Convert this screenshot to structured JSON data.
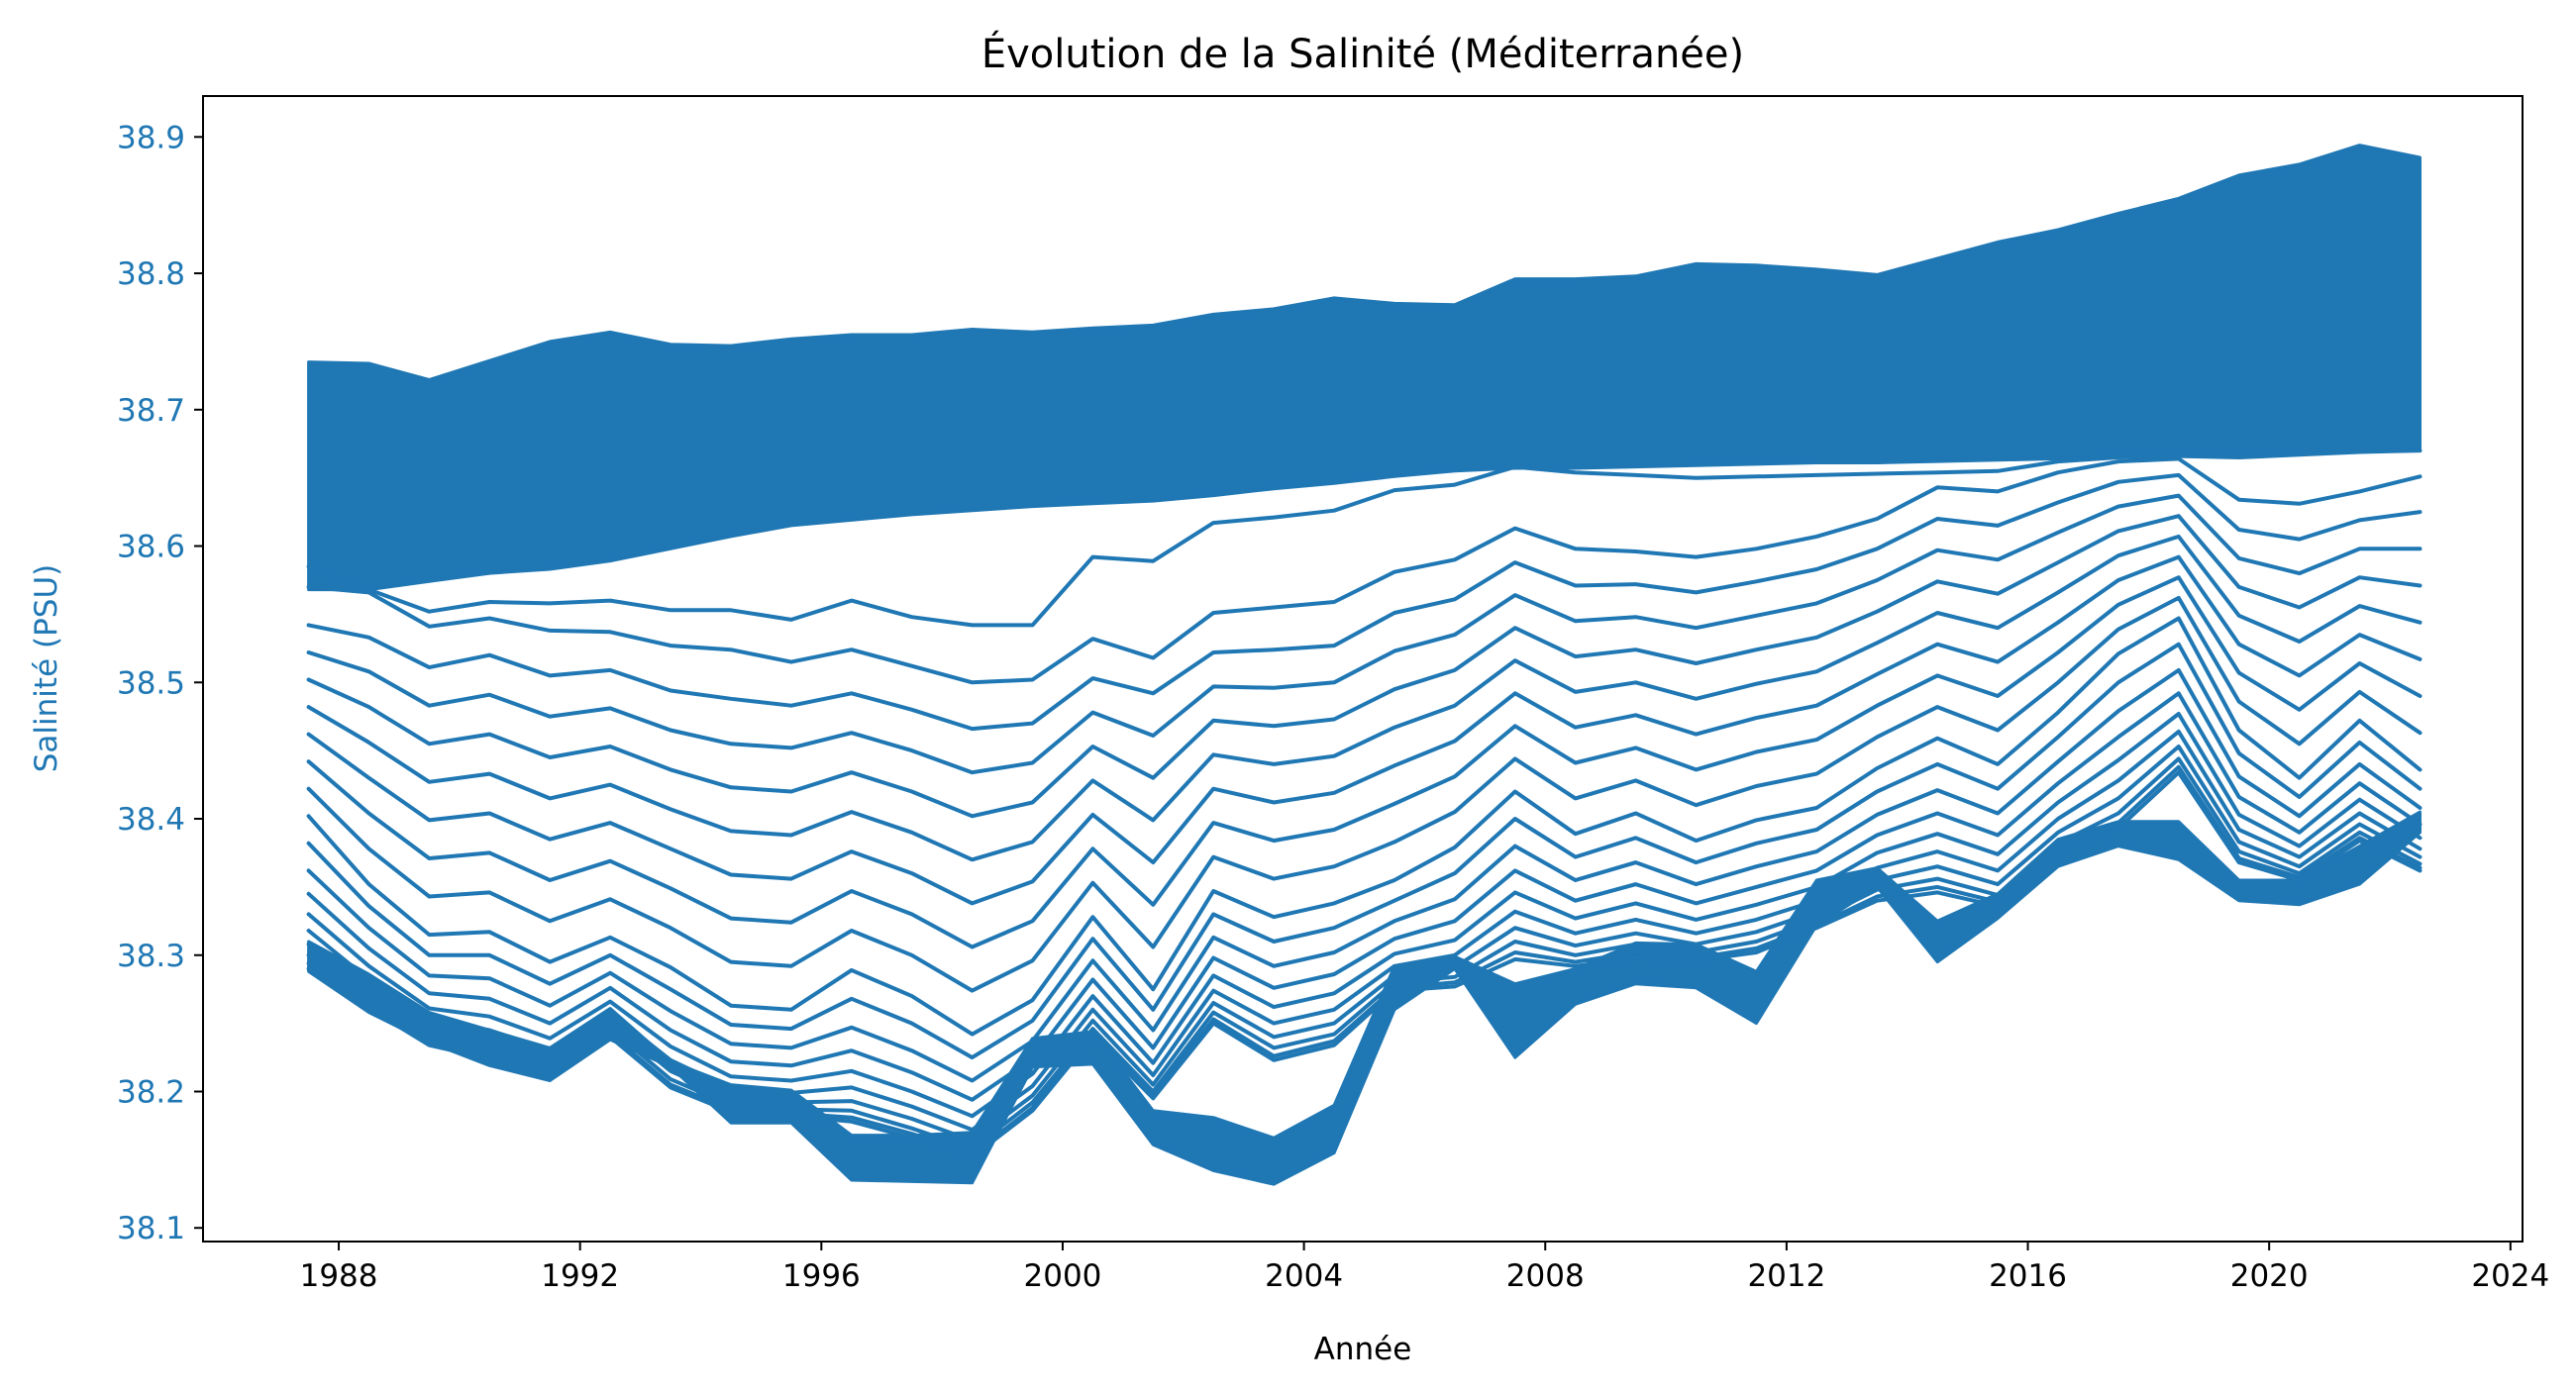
{
  "chart_data": {
    "type": "line",
    "title": "Évolution de la Salinité (Méditerranée)",
    "xlabel": "Année",
    "ylabel": "Salinité (PSU)",
    "x_ticks": [
      "1988",
      "1992",
      "1996",
      "2000",
      "2004",
      "2008",
      "2012",
      "2016",
      "2020",
      "2024"
    ],
    "y_ticks": [
      "38.1",
      "38.2",
      "38.3",
      "38.4",
      "38.5",
      "38.6",
      "38.7",
      "38.8",
      "38.9"
    ],
    "xlim": [
      1985.75,
      2024.2
    ],
    "ylim": [
      38.09,
      38.93
    ],
    "series_color": "#1f77b4",
    "ytick_color": "#1f77b4",
    "grid": false,
    "legend": "none",
    "x": [
      1987.5,
      1988.5,
      1989.5,
      1990.5,
      1991.5,
      1992.5,
      1993.5,
      1994.5,
      1995.5,
      1996.5,
      1997.5,
      1998.5,
      1999.5,
      2000.5,
      2001.5,
      2002.5,
      2003.5,
      2004.5,
      2005.5,
      2006.5,
      2007.5,
      2008.5,
      2009.5,
      2010.5,
      2011.5,
      2012.5,
      2013.5,
      2014.5,
      2015.5,
      2016.5,
      2017.5,
      2018.5,
      2019.5,
      2020.5,
      2021.5,
      2022.5
    ],
    "band_upper": [
      38.735,
      38.734,
      38.722,
      38.736,
      38.75,
      38.757,
      38.748,
      38.747,
      38.752,
      38.755,
      38.755,
      38.759,
      38.757,
      38.76,
      38.762,
      38.77,
      38.774,
      38.782,
      38.778,
      38.777,
      38.796,
      38.796,
      38.798,
      38.807,
      38.806,
      38.803,
      38.799,
      38.811,
      38.823,
      38.832,
      38.844,
      38.855,
      38.872,
      38.88,
      38.894,
      38.885
    ],
    "band_lower": [
      38.568,
      38.568,
      38.574,
      38.58,
      38.583,
      38.589,
      38.598,
      38.607,
      38.615,
      38.619,
      38.623,
      38.626,
      38.629,
      38.631,
      38.633,
      38.637,
      38.642,
      38.646,
      38.651,
      38.655,
      38.657,
      38.657,
      38.658,
      38.659,
      38.66,
      38.661,
      38.661,
      38.662,
      38.663,
      38.664,
      38.665,
      38.666,
      38.667,
      38.668,
      38.669,
      38.67
    ],
    "series": [
      {
        "values": [
          38.585,
          38.568,
          38.552,
          38.559,
          38.558,
          38.56,
          38.553,
          38.553,
          38.546,
          38.56,
          38.548,
          38.542,
          38.542,
          38.592,
          38.589,
          38.617,
          38.621,
          38.626,
          38.641,
          38.645,
          38.658,
          38.654,
          38.652,
          38.65,
          38.651,
          38.652,
          38.653,
          38.654,
          38.655,
          38.662,
          38.665,
          38.666,
          38.665,
          38.667,
          38.669,
          38.67
        ]
      },
      {
        "values": [
          38.57,
          38.566,
          38.541,
          38.547,
          38.538,
          38.537,
          38.527,
          38.524,
          38.515,
          38.524,
          38.512,
          38.5,
          38.502,
          38.532,
          38.518,
          38.551,
          38.555,
          38.559,
          38.581,
          38.59,
          38.613,
          38.598,
          38.596,
          38.592,
          38.598,
          38.607,
          38.62,
          38.643,
          38.64,
          38.654,
          38.662,
          38.664,
          38.634,
          38.631,
          38.64,
          38.651
        ]
      },
      {
        "values": [
          38.542,
          38.533,
          38.511,
          38.52,
          38.505,
          38.509,
          38.494,
          38.488,
          38.483,
          38.492,
          38.48,
          38.466,
          38.47,
          38.503,
          38.492,
          38.522,
          38.524,
          38.527,
          38.551,
          38.561,
          38.588,
          38.571,
          38.572,
          38.566,
          38.574,
          38.583,
          38.598,
          38.62,
          38.615,
          38.632,
          38.647,
          38.652,
          38.612,
          38.605,
          38.619,
          38.625
        ]
      },
      {
        "values": [
          38.522,
          38.508,
          38.483,
          38.491,
          38.475,
          38.481,
          38.465,
          38.455,
          38.452,
          38.463,
          38.45,
          38.434,
          38.441,
          38.478,
          38.461,
          38.497,
          38.496,
          38.5,
          38.523,
          38.535,
          38.564,
          38.545,
          38.548,
          38.54,
          38.549,
          38.558,
          38.575,
          38.597,
          38.59,
          38.61,
          38.629,
          38.637,
          38.591,
          38.58,
          38.598,
          38.598
        ]
      },
      {
        "values": [
          38.502,
          38.482,
          38.455,
          38.462,
          38.445,
          38.453,
          38.436,
          38.423,
          38.42,
          38.434,
          38.42,
          38.402,
          38.412,
          38.453,
          38.43,
          38.472,
          38.468,
          38.473,
          38.495,
          38.509,
          38.54,
          38.519,
          38.524,
          38.514,
          38.524,
          38.533,
          38.552,
          38.574,
          38.565,
          38.588,
          38.611,
          38.622,
          38.57,
          38.555,
          38.577,
          38.571
        ]
      },
      {
        "values": [
          38.482,
          38.456,
          38.427,
          38.433,
          38.415,
          38.425,
          38.407,
          38.391,
          38.388,
          38.405,
          38.39,
          38.37,
          38.383,
          38.428,
          38.399,
          38.447,
          38.44,
          38.446,
          38.467,
          38.483,
          38.516,
          38.493,
          38.5,
          38.488,
          38.499,
          38.508,
          38.529,
          38.551,
          38.54,
          38.566,
          38.593,
          38.607,
          38.549,
          38.53,
          38.556,
          38.544
        ]
      },
      {
        "values": [
          38.462,
          38.43,
          38.399,
          38.404,
          38.385,
          38.397,
          38.378,
          38.359,
          38.356,
          38.376,
          38.36,
          38.338,
          38.354,
          38.403,
          38.368,
          38.422,
          38.412,
          38.419,
          38.439,
          38.457,
          38.492,
          38.467,
          38.476,
          38.462,
          38.474,
          38.483,
          38.506,
          38.528,
          38.515,
          38.544,
          38.575,
          38.592,
          38.528,
          38.505,
          38.535,
          38.517
        ]
      },
      {
        "values": [
          38.442,
          38.404,
          38.371,
          38.375,
          38.355,
          38.369,
          38.349,
          38.327,
          38.324,
          38.347,
          38.33,
          38.306,
          38.325,
          38.378,
          38.337,
          38.397,
          38.384,
          38.392,
          38.411,
          38.431,
          38.468,
          38.441,
          38.452,
          38.436,
          38.449,
          38.458,
          38.483,
          38.505,
          38.49,
          38.522,
          38.557,
          38.577,
          38.507,
          38.48,
          38.514,
          38.49
        ]
      },
      {
        "values": [
          38.422,
          38.378,
          38.343,
          38.346,
          38.325,
          38.341,
          38.32,
          38.295,
          38.292,
          38.318,
          38.3,
          38.274,
          38.296,
          38.353,
          38.306,
          38.372,
          38.356,
          38.365,
          38.383,
          38.405,
          38.444,
          38.415,
          38.428,
          38.41,
          38.424,
          38.433,
          38.46,
          38.482,
          38.465,
          38.5,
          38.539,
          38.562,
          38.486,
          38.455,
          38.493,
          38.463
        ]
      },
      {
        "values": [
          38.402,
          38.352,
          38.315,
          38.317,
          38.295,
          38.313,
          38.291,
          38.263,
          38.26,
          38.289,
          38.27,
          38.242,
          38.267,
          38.328,
          38.275,
          38.347,
          38.328,
          38.338,
          38.355,
          38.379,
          38.42,
          38.389,
          38.404,
          38.384,
          38.399,
          38.408,
          38.437,
          38.459,
          38.44,
          38.478,
          38.521,
          38.547,
          38.465,
          38.43,
          38.472,
          38.436
        ]
      },
      {
        "values": [
          38.382,
          38.336,
          38.3,
          38.3,
          38.279,
          38.3,
          38.275,
          38.249,
          38.246,
          38.268,
          38.25,
          38.225,
          38.252,
          38.312,
          38.26,
          38.33,
          38.31,
          38.32,
          38.34,
          38.36,
          38.4,
          38.372,
          38.386,
          38.368,
          38.382,
          38.392,
          38.42,
          38.44,
          38.422,
          38.46,
          38.5,
          38.528,
          38.448,
          38.416,
          38.456,
          38.422
        ]
      },
      {
        "values": [
          38.362,
          38.32,
          38.285,
          38.283,
          38.263,
          38.287,
          38.259,
          38.235,
          38.232,
          38.247,
          38.23,
          38.208,
          38.237,
          38.296,
          38.245,
          38.313,
          38.292,
          38.302,
          38.325,
          38.341,
          38.38,
          38.355,
          38.368,
          38.352,
          38.365,
          38.376,
          38.403,
          38.421,
          38.404,
          38.442,
          38.479,
          38.509,
          38.431,
          38.402,
          38.44,
          38.408
        ]
      },
      {
        "values": [
          38.345,
          38.305,
          38.272,
          38.268,
          38.25,
          38.276,
          38.245,
          38.222,
          38.219,
          38.23,
          38.214,
          38.194,
          38.224,
          38.282,
          38.232,
          38.298,
          38.276,
          38.286,
          38.312,
          38.325,
          38.362,
          38.34,
          38.352,
          38.338,
          38.35,
          38.362,
          38.388,
          38.404,
          38.388,
          38.426,
          38.46,
          38.492,
          38.416,
          38.39,
          38.426,
          38.396
        ]
      },
      {
        "values": [
          38.33,
          38.292,
          38.261,
          38.255,
          38.239,
          38.266,
          38.233,
          38.211,
          38.208,
          38.215,
          38.2,
          38.182,
          38.213,
          38.27,
          38.221,
          38.285,
          38.262,
          38.272,
          38.301,
          38.311,
          38.346,
          38.327,
          38.338,
          38.326,
          38.337,
          38.35,
          38.375,
          38.389,
          38.374,
          38.412,
          38.443,
          38.477,
          38.403,
          38.38,
          38.414,
          38.386
        ]
      },
      {
        "values": [
          38.318,
          38.282,
          38.252,
          38.245,
          38.23,
          38.258,
          38.223,
          38.202,
          38.199,
          38.203,
          38.189,
          38.172,
          38.204,
          38.26,
          38.212,
          38.274,
          38.25,
          38.26,
          38.292,
          38.3,
          38.332,
          38.316,
          38.326,
          38.316,
          38.326,
          38.34,
          38.364,
          38.376,
          38.362,
          38.4,
          38.428,
          38.464,
          38.392,
          38.372,
          38.404,
          38.378
        ]
      },
      {
        "values": [
          38.308,
          38.274,
          38.245,
          38.237,
          38.223,
          38.251,
          38.215,
          38.195,
          38.192,
          38.193,
          38.18,
          38.164,
          38.197,
          38.252,
          38.205,
          38.265,
          38.24,
          38.25,
          38.285,
          38.291,
          38.32,
          38.307,
          38.316,
          38.308,
          38.317,
          38.332,
          38.355,
          38.365,
          38.352,
          38.39,
          38.415,
          38.453,
          38.383,
          38.365,
          38.396,
          38.372
        ]
      },
      {
        "values": [
          38.3,
          38.268,
          38.24,
          38.231,
          38.218,
          38.246,
          38.209,
          38.19,
          38.187,
          38.186,
          38.173,
          38.158,
          38.192,
          38.246,
          38.2,
          38.258,
          38.232,
          38.242,
          38.28,
          38.284,
          38.31,
          38.3,
          38.308,
          38.302,
          38.31,
          38.326,
          38.348,
          38.356,
          38.344,
          38.382,
          38.404,
          38.444,
          38.376,
          38.36,
          38.39,
          38.367
        ]
      },
      {
        "values": [
          38.294,
          38.264,
          38.236,
          38.227,
          38.214,
          38.242,
          38.205,
          38.187,
          38.184,
          38.181,
          38.169,
          38.154,
          38.188,
          38.242,
          38.197,
          38.253,
          38.226,
          38.237,
          38.276,
          38.28,
          38.302,
          38.295,
          38.302,
          38.298,
          38.305,
          38.322,
          38.343,
          38.35,
          38.339,
          38.377,
          38.397,
          38.438,
          38.371,
          38.357,
          38.386,
          38.364
        ]
      },
      {
        "values": [
          38.29,
          38.261,
          38.234,
          38.224,
          38.212,
          38.24,
          38.203,
          38.185,
          38.182,
          38.178,
          38.166,
          38.152,
          38.186,
          38.24,
          38.195,
          38.25,
          38.223,
          38.234,
          38.274,
          38.277,
          38.297,
          38.292,
          38.298,
          38.296,
          38.302,
          38.32,
          38.34,
          38.346,
          38.336,
          38.374,
          38.393,
          38.434,
          38.368,
          38.355,
          38.384,
          38.362
        ]
      }
    ],
    "thick_lower": {
      "top": [
        38.31,
        38.286,
        38.258,
        38.245,
        38.232,
        38.261,
        38.222,
        38.205,
        38.201,
        38.168,
        38.168,
        38.17,
        38.239,
        38.244,
        38.186,
        38.181,
        38.166,
        38.19,
        38.292,
        38.299,
        38.279,
        38.29,
        38.309,
        38.308,
        38.288,
        38.355,
        38.364,
        38.325,
        38.345,
        38.385,
        38.398,
        38.398,
        38.355,
        38.355,
        38.38,
        38.405
      ],
      "bottom": [
        38.288,
        38.258,
        38.236,
        38.219,
        38.208,
        38.238,
        38.218,
        38.177,
        38.177,
        38.135,
        38.134,
        38.133,
        38.218,
        38.22,
        38.161,
        38.142,
        38.132,
        38.155,
        38.26,
        38.29,
        38.225,
        38.264,
        38.279,
        38.276,
        38.25,
        38.322,
        38.35,
        38.295,
        38.327,
        38.365,
        38.38,
        38.37,
        38.34,
        38.337,
        38.352,
        38.39
      ]
    }
  }
}
